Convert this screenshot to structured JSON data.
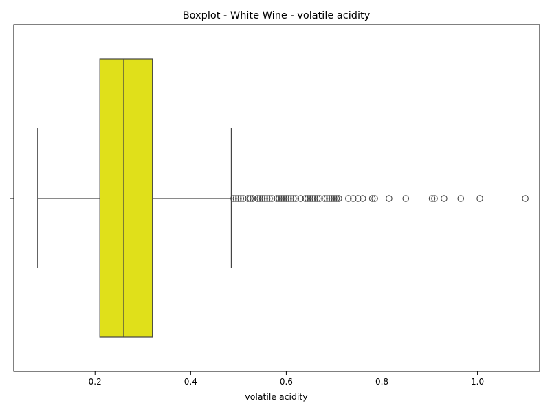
{
  "chart_data": {
    "type": "boxplot",
    "title": "Boxplot - White Wine - volatile acidity",
    "xlabel": "volatile acidity",
    "ylabel": "",
    "xlim": [
      0.03,
      1.13
    ],
    "xticks": [
      0.2,
      0.4,
      0.6,
      0.8,
      1.0
    ],
    "xtick_labels": [
      "0.2",
      "0.4",
      "0.6",
      "0.8",
      "1.0"
    ],
    "grid": false,
    "orientation": "horizontal",
    "box_color": "#e0e01a",
    "line_color": "#444444",
    "box": {
      "whisker_low": 0.08,
      "q1": 0.21,
      "median": 0.26,
      "q3": 0.32,
      "whisker_high": 0.485
    },
    "outliers": [
      0.49,
      0.495,
      0.5,
      0.505,
      0.51,
      0.52,
      0.525,
      0.53,
      0.54,
      0.545,
      0.55,
      0.555,
      0.56,
      0.565,
      0.57,
      0.58,
      0.585,
      0.59,
      0.595,
      0.6,
      0.605,
      0.61,
      0.615,
      0.62,
      0.63,
      0.64,
      0.645,
      0.65,
      0.655,
      0.66,
      0.665,
      0.67,
      0.68,
      0.685,
      0.69,
      0.695,
      0.7,
      0.705,
      0.71,
      0.73,
      0.74,
      0.75,
      0.76,
      0.78,
      0.785,
      0.815,
      0.85,
      0.905,
      0.91,
      0.93,
      0.965,
      1.005,
      1.1
    ]
  }
}
